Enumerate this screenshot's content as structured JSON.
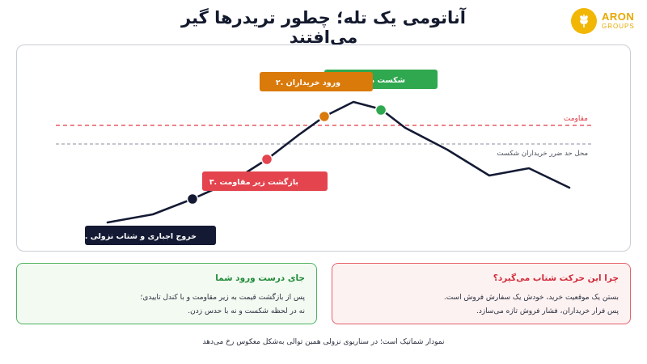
{
  "header": {
    "title": "آناتومی یک تله؛ چطور تریدرها گیر می‌افتند",
    "logo_name": "ARON",
    "logo_sub": "GROUPS",
    "logo_icon": "wheat-icon",
    "logo_color": "#f2b705"
  },
  "diagram": {
    "resistance_label": "مقاومت",
    "stoploss_label": "محل حد ضرر خریداران شکست",
    "colors": {
      "line": "#141a34",
      "resistance": "#e03a44",
      "stoploss": "#8a8f99",
      "green": "#2fa84f",
      "orange": "#d97a0b",
      "red": "#e3444e",
      "navy": "#141a34"
    },
    "callouts": [
      {
        "id": "breakout",
        "text": "۱. شکست مقاومت",
        "color": "#2fa84f"
      },
      {
        "id": "buyers",
        "text": "۲. ورود خریداران",
        "color": "#d97a0b"
      },
      {
        "id": "return",
        "text": "۳. بازگشت زیر مقاومت",
        "color": "#e3444e"
      },
      {
        "id": "exit",
        "text": "۴. خروج اجباری و شتاب نزولی",
        "color": "#141a34"
      }
    ]
  },
  "panels": {
    "right": {
      "title": "چرا این حرکت شتاب می‌گیرد؟",
      "lines": [
        "بستن یک موقعیت خرید، خودش یک سفارش فروش است.",
        "پس فرار خریداران، فشار فروش تازه می‌سازد."
      ]
    },
    "left": {
      "title": "جای درست ورود شما",
      "lines": [
        "پس از بازگشت قیمت به زیر مقاومت و با کندل تاییدی؛",
        "نه در لحظه شکست و نه با حدس زدن."
      ]
    }
  },
  "footnote": "نمودار شماتیک است؛ در سناریوی نزولی همین توالی به‌شکل معکوس رخ می‌دهد"
}
